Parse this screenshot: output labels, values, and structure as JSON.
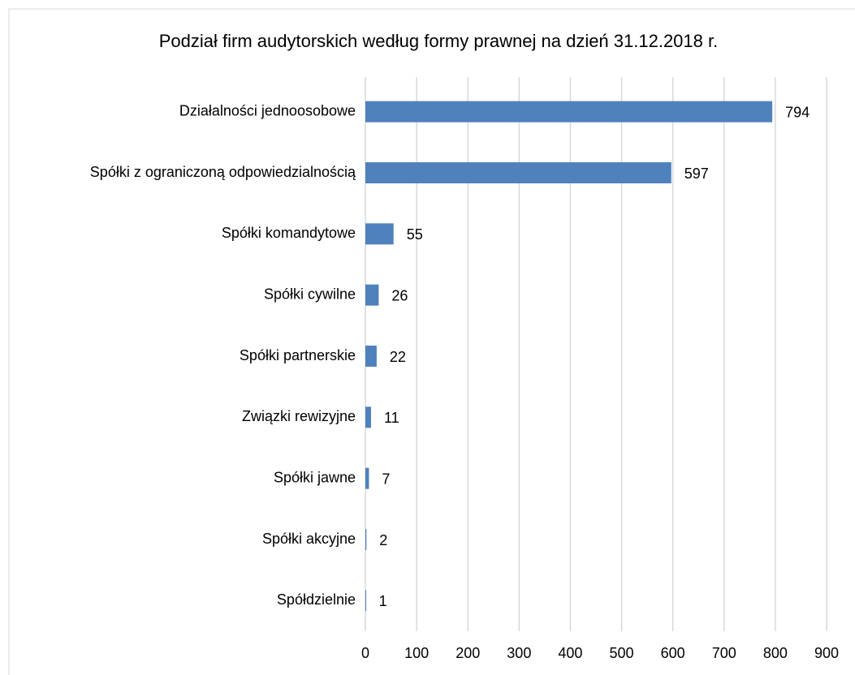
{
  "chart_data": {
    "type": "hbar",
    "title": "Podział firm audytorskich według formy prawnej na dzień 31.12.2018 r.",
    "categories": [
      "Działalności jednoosobowe",
      "Spółki z ograniczoną odpowiedzialnością",
      "Spółki komandytowe",
      "Spółki cywilne",
      "Spółki partnerskie",
      "Związki rewizyjne",
      "Spółki jawne",
      "Spółki akcyjne",
      "Spółdzielnie"
    ],
    "values": [
      794,
      597,
      55,
      26,
      22,
      11,
      7,
      2,
      1
    ],
    "color": "#4f81bd",
    "xlim": [
      0,
      900
    ],
    "xticks": [
      0,
      100,
      200,
      300,
      400,
      500,
      600,
      700,
      800,
      900
    ],
    "grid": true
  }
}
